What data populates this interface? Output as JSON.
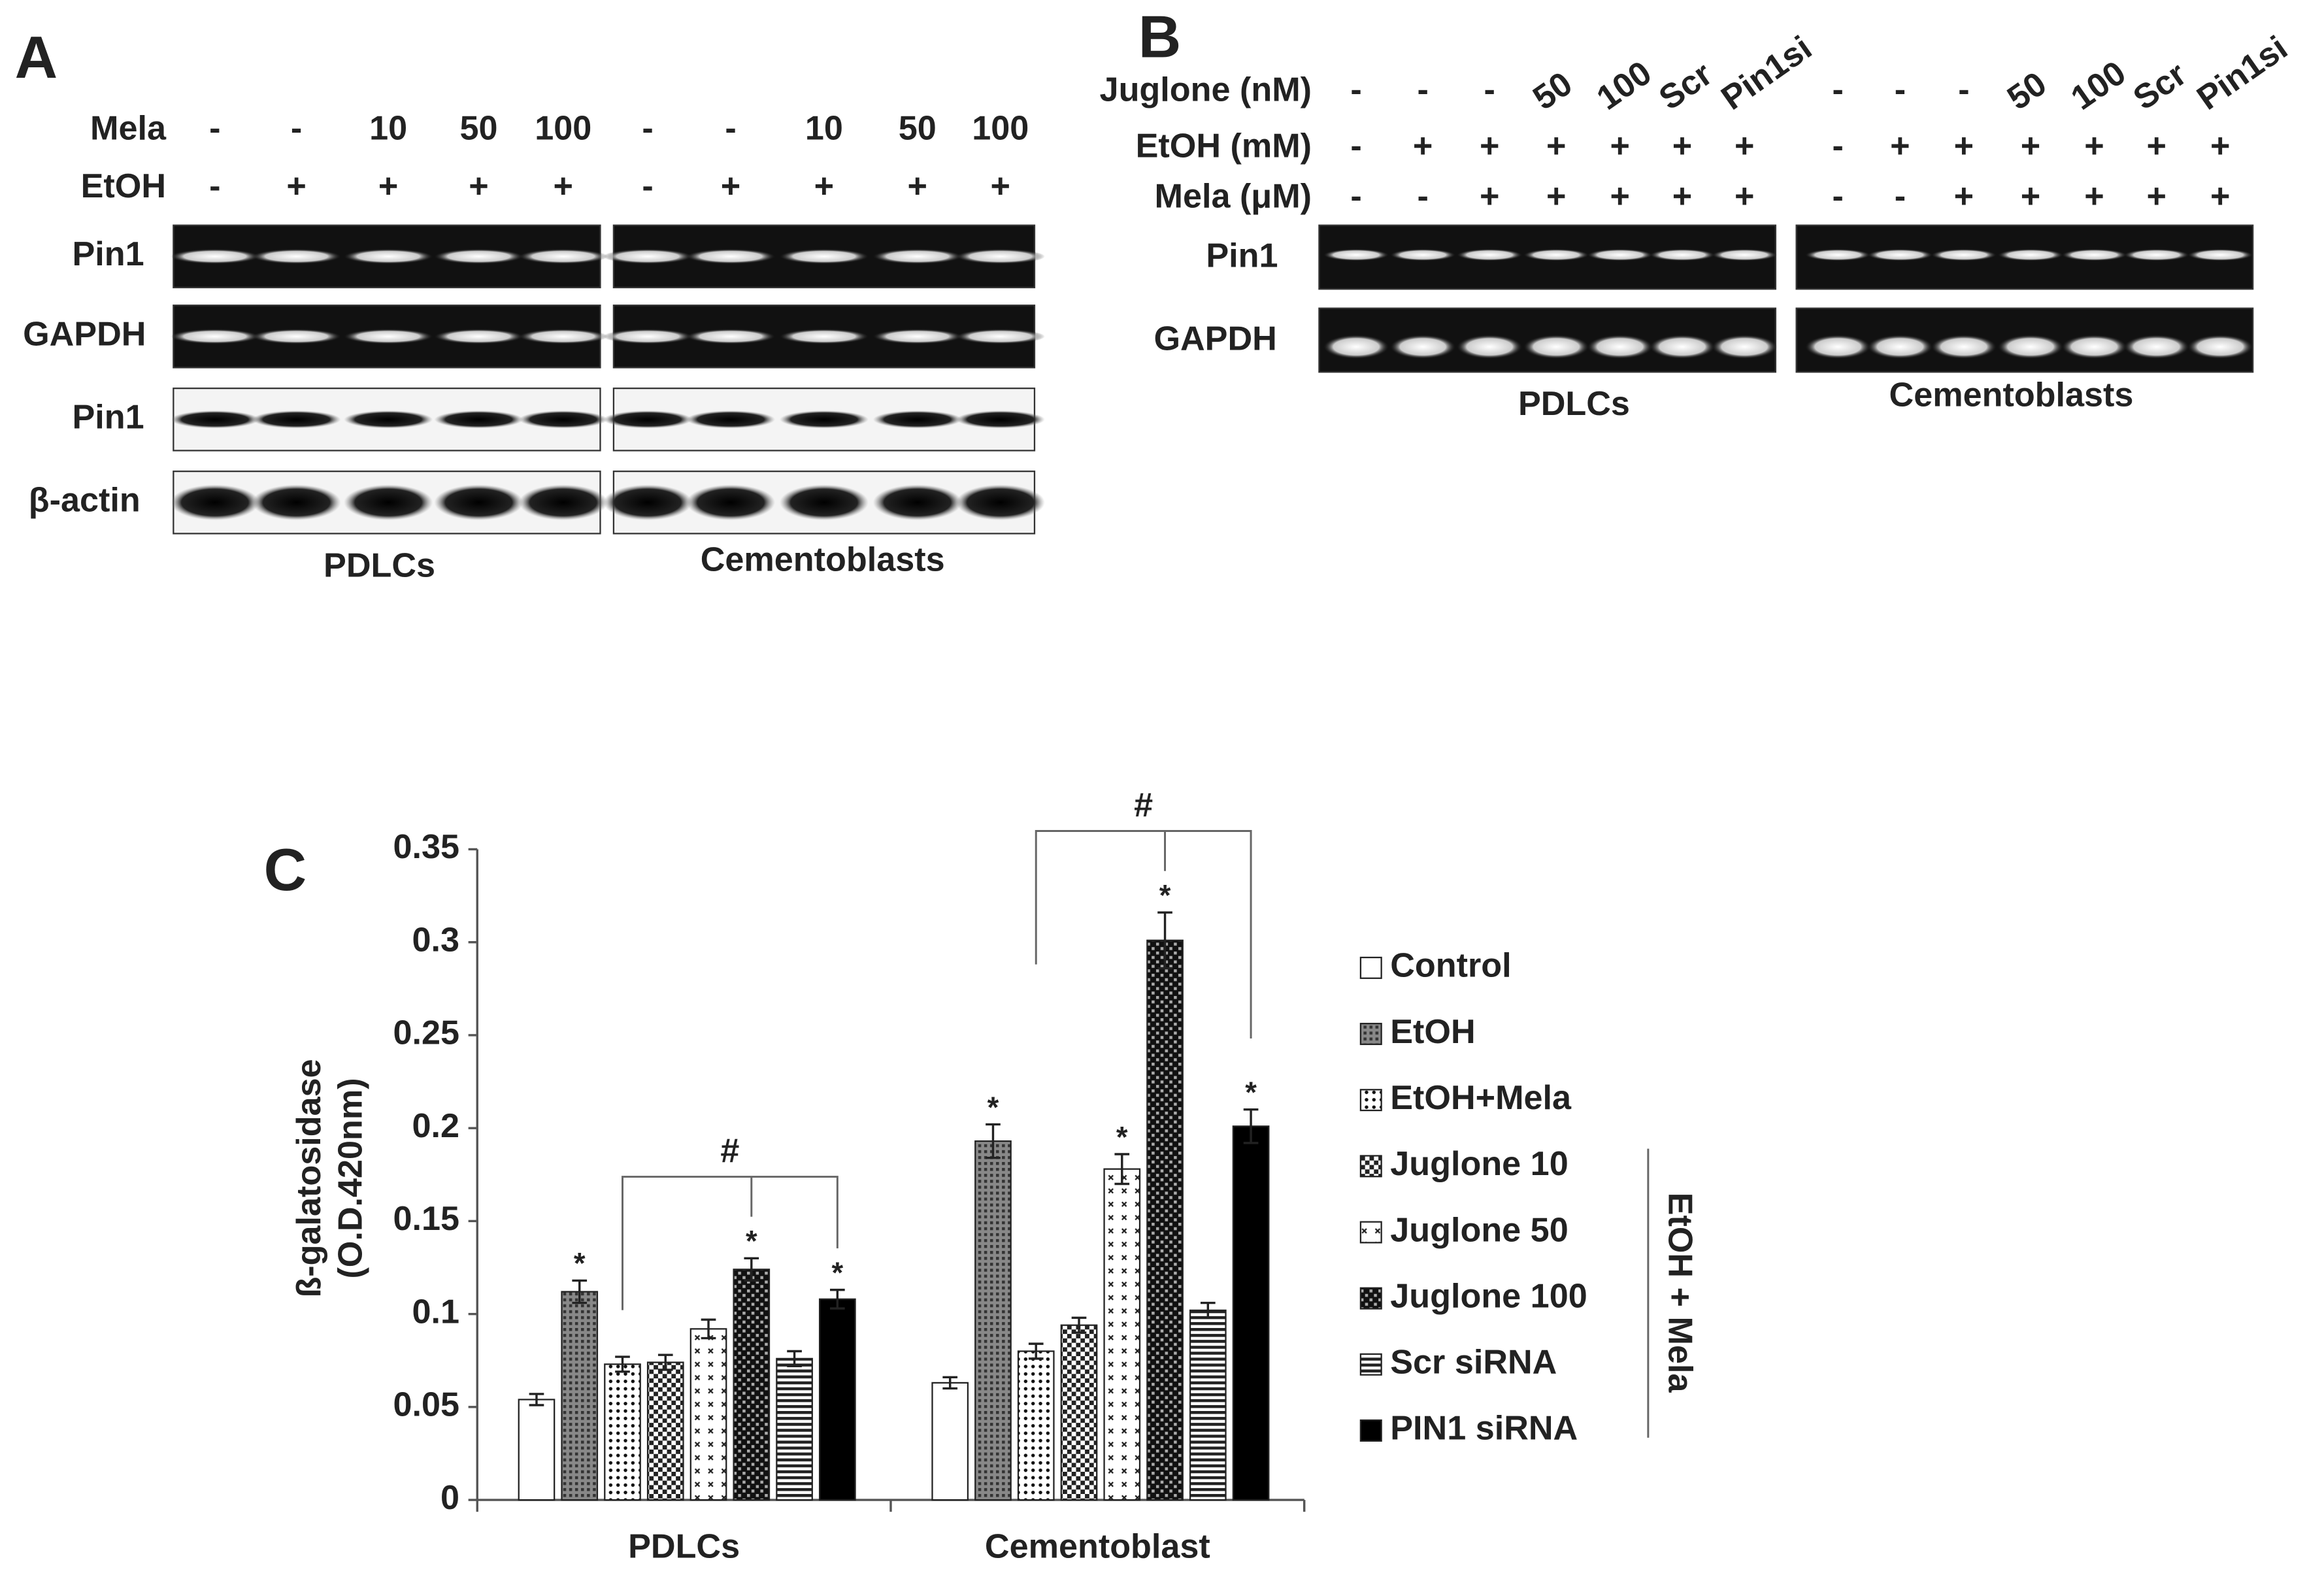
{
  "panel_a": {
    "label": "A",
    "rows": [
      {
        "name": "Mela",
        "values": [
          "-",
          "-",
          "10",
          "50",
          "100",
          "-",
          "-",
          "10",
          "50",
          "100"
        ]
      },
      {
        "name": "EtOH",
        "values": [
          "-",
          "+",
          "+",
          "+",
          "+",
          "-",
          "+",
          "+",
          "+",
          "+"
        ]
      }
    ],
    "blots": [
      "Pin1",
      "GAPDH",
      "Pin1",
      "β-actin"
    ],
    "groups": [
      "PDLCs",
      "Cementoblasts"
    ]
  },
  "panel_b": {
    "label": "B",
    "rows": [
      {
        "name": "Juglone (nM)",
        "values": [
          "-",
          "-",
          "-",
          "50",
          "100",
          "Scr",
          "Pin1si",
          "-",
          "-",
          "-",
          "50",
          "100",
          "Scr",
          "Pin1si"
        ]
      },
      {
        "name": "EtOH (mM)",
        "values": [
          "-",
          "+",
          "+",
          "+",
          "+",
          "+",
          "+",
          "-",
          "+",
          "+",
          "+",
          "+",
          "+",
          "+"
        ]
      },
      {
        "name": "Mela (μM)",
        "values": [
          "-",
          "-",
          "+",
          "+",
          "+",
          "+",
          "+",
          "-",
          "-",
          "+",
          "+",
          "+",
          "+",
          "+"
        ]
      }
    ],
    "blots": [
      "Pin1",
      "GAPDH"
    ],
    "groups": [
      "PDLCs",
      "Cementoblasts"
    ]
  },
  "chart_data": {
    "type": "bar",
    "panel_label": "C",
    "ylabel": [
      "ß-galatosidase",
      "(O.D.420nm)"
    ],
    "categories": [
      "PDLCs",
      "Cementoblast"
    ],
    "ylim": [
      0,
      0.35
    ],
    "yticks": [
      0,
      0.05,
      0.1,
      0.15,
      0.2,
      0.25,
      0.3,
      0.35
    ],
    "series": [
      {
        "name": "Control",
        "pattern": "white",
        "values": [
          0.054,
          0.063
        ],
        "errors": [
          0.003,
          0.003
        ],
        "star_labels": [
          null,
          null
        ]
      },
      {
        "name": "EtOH",
        "pattern": "stipple",
        "values": [
          0.112,
          0.193
        ],
        "errors": [
          0.006,
          0.009
        ],
        "star_labels": [
          "*",
          "*"
        ]
      },
      {
        "name": "EtOH+Mela",
        "pattern": "dots",
        "values": [
          0.073,
          0.08
        ],
        "errors": [
          0.004,
          0.004
        ],
        "star_labels": [
          null,
          null
        ]
      },
      {
        "name": "Juglone 10",
        "pattern": "check",
        "values": [
          0.074,
          0.094
        ],
        "errors": [
          0.004,
          0.004
        ],
        "star_labels": [
          null,
          null
        ]
      },
      {
        "name": "Juglone 50",
        "pattern": "sparse",
        "values": [
          0.092,
          0.178
        ],
        "errors": [
          0.005,
          0.008
        ],
        "star_labels": [
          null,
          "*"
        ]
      },
      {
        "name": "Juglone 100",
        "pattern": "darkcheck",
        "values": [
          0.124,
          0.301
        ],
        "errors": [
          0.006,
          0.015
        ],
        "star_labels": [
          "*",
          "*"
        ]
      },
      {
        "name": "Scr siRNA",
        "pattern": "hlines",
        "values": [
          0.076,
          0.102
        ],
        "errors": [
          0.004,
          0.004
        ],
        "star_labels": [
          null,
          null
        ]
      },
      {
        "name": "PIN1 siRNA",
        "pattern": "black",
        "values": [
          0.108,
          0.201
        ],
        "errors": [
          0.005,
          0.009
        ],
        "star_labels": [
          "*",
          "*"
        ]
      }
    ],
    "bracket_labels": [
      "#",
      "#"
    ],
    "legend_group_label": "EtOH + Mela"
  }
}
